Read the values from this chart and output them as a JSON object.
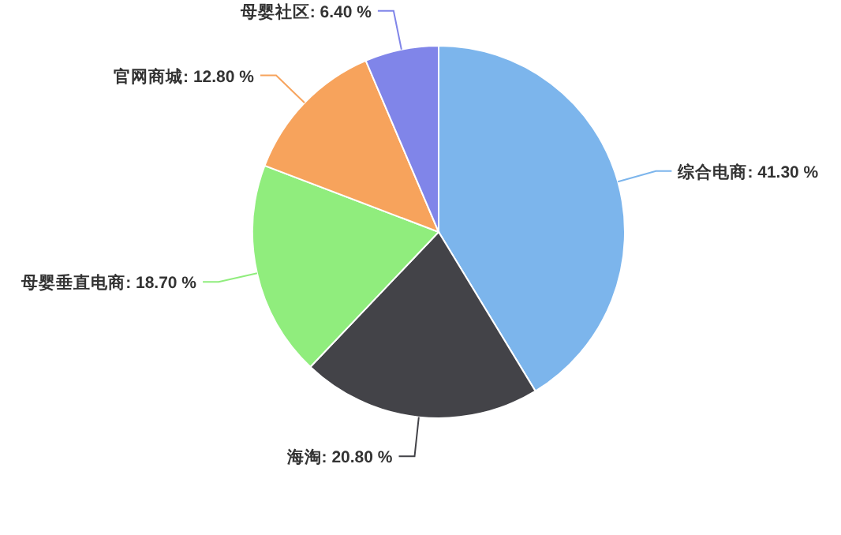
{
  "chart_data": {
    "type": "pie",
    "categories": [
      "综合电商",
      "海淘",
      "母婴垂直电商",
      "官网商城",
      "母婴社区"
    ],
    "values": [
      41.3,
      20.8,
      18.7,
      12.8,
      6.4
    ],
    "value_labels": [
      "41.30 %",
      "20.80 %",
      "18.70 %",
      "12.80 %",
      "6.40 %"
    ],
    "colors": [
      "#7cb5ec",
      "#434348",
      "#90ed7d",
      "#f7a35c",
      "#8085e9"
    ]
  }
}
